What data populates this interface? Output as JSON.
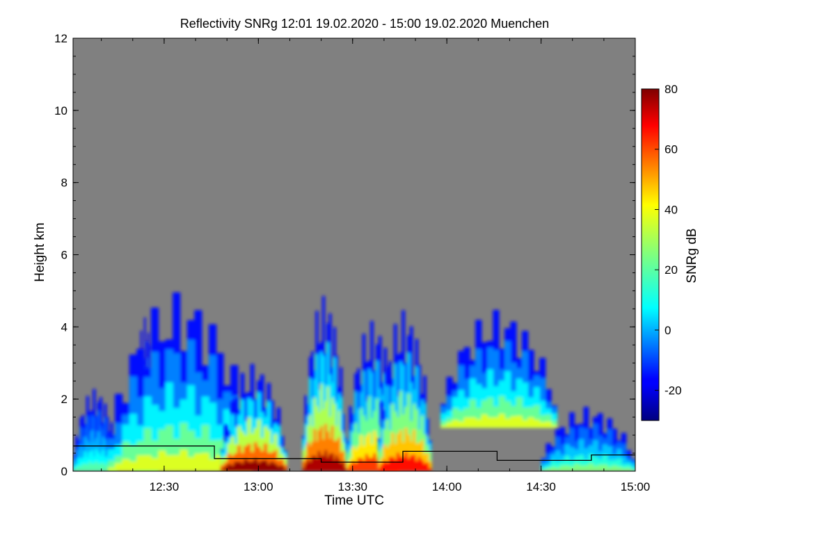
{
  "chart_data": {
    "type": "heatmap",
    "title": "Reflectivity SNRg   12:01 19.02.2020 - 15:00 19.02.2020 Muenchen",
    "xlabel": "Time UTC",
    "ylabel": "Height km",
    "xlim": [
      "12:01",
      "15:00"
    ],
    "ylim": [
      0,
      12
    ],
    "x_ticks": [
      "12:30",
      "13:00",
      "13:30",
      "14:00",
      "14:30",
      "15:00"
    ],
    "y_ticks": [
      0,
      2,
      4,
      6,
      8,
      10,
      12
    ],
    "background_color": "#808080",
    "colorbar": {
      "label": "SNRg dB",
      "range": [
        -30,
        80
      ],
      "ticks": [
        -20,
        0,
        20,
        40,
        60,
        80
      ],
      "colormap": "jet"
    },
    "echo_cells": [
      {
        "t_start": "12:01",
        "t_end": "12:15",
        "h_base": 0.0,
        "h_top": 2.3,
        "snr_max": 20
      },
      {
        "t_start": "12:20",
        "t_end": "12:28",
        "h_base": 0.0,
        "h_top": 4.3,
        "snr_max": 15
      },
      {
        "t_start": "12:12",
        "t_end": "12:58",
        "h_base": 0.0,
        "h_top": 5.0,
        "snr_max": 35
      },
      {
        "t_start": "12:48",
        "t_end": "13:09",
        "h_base": 0.0,
        "h_top": 3.0,
        "snr_max": 78
      },
      {
        "t_start": "13:14",
        "t_end": "13:28",
        "h_base": 0.0,
        "h_top": 4.9,
        "snr_max": 75
      },
      {
        "t_start": "13:28",
        "t_end": "13:45",
        "h_base": 0.0,
        "h_top": 4.2,
        "snr_max": 60
      },
      {
        "t_start": "13:38",
        "t_end": "13:55",
        "h_base": 0.0,
        "h_top": 4.5,
        "snr_max": 65
      },
      {
        "t_start": "13:58",
        "t_end": "14:35",
        "h_base": 1.2,
        "h_top": 4.5,
        "snr_max": 35
      },
      {
        "t_start": "14:30",
        "t_end": "15:00",
        "h_base": 0.0,
        "h_top": 1.8,
        "snr_max": 25
      }
    ],
    "overlay_line": {
      "color": "#000000",
      "times": [
        "12:01",
        "12:46",
        "12:46",
        "13:20",
        "13:20",
        "13:46",
        "13:46",
        "14:16",
        "14:16",
        "14:46",
        "14:46",
        "15:00"
      ],
      "heights": [
        0.7,
        0.7,
        0.35,
        0.35,
        0.25,
        0.25,
        0.55,
        0.55,
        0.3,
        0.3,
        0.45,
        0.45
      ]
    }
  }
}
